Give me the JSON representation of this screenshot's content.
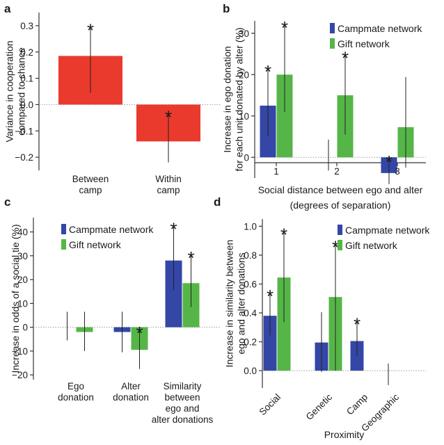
{
  "colors": {
    "red": "#ea3a2d",
    "blue": "#3446a6",
    "green": "#55b647",
    "axis": "#333333",
    "zero_line": "#9a9a9a"
  },
  "chart_data": [
    {
      "id": "a",
      "panel_letter": "a",
      "type": "bar",
      "ylabel_lines": [
        "Variance in cooperation",
        "compared to chance"
      ],
      "ylim": [
        -0.25,
        0.35
      ],
      "yticks": [
        -0.2,
        -0.1,
        0.0,
        0.1,
        0.2,
        0.3
      ],
      "ytick_labels": [
        "−0.2",
        "−0.1",
        "0.0",
        "0.1",
        "0.2",
        "0.3"
      ],
      "categories": [
        {
          "lines": [
            "Between",
            "camp"
          ]
        },
        {
          "lines": [
            "Within",
            "camp"
          ]
        }
      ],
      "series": [
        {
          "color": "#ea3a2d",
          "values": [
            0.185,
            -0.14
          ],
          "err_low": [
            0.045,
            -0.22
          ],
          "err_high": [
            0.29,
            -0.04
          ],
          "significant": [
            true,
            true
          ]
        }
      ],
      "zero_line": "dotted",
      "legend": null
    },
    {
      "id": "b",
      "panel_letter": "b",
      "type": "bar",
      "ylabel_lines": [
        "Increase in ego donation",
        "for each unit donated by alter (%)"
      ],
      "xlabel_lines": [
        "Social distance between ego and alter",
        "(degrees of separation)"
      ],
      "ylim": [
        -5,
        33
      ],
      "yticks": [
        0,
        10,
        20,
        30
      ],
      "ytick_labels": [
        "0",
        "10",
        "20",
        "30"
      ],
      "categories": [
        {
          "lines": [
            "1"
          ]
        },
        {
          "lines": [
            "2"
          ]
        },
        {
          "lines": [
            "3"
          ]
        }
      ],
      "series": [
        {
          "name": "Campmate network",
          "color": "#3446a6",
          "values": [
            12.5,
            null,
            -3.8
          ],
          "err_low": [
            5.2,
            -3.2,
            -6.5
          ],
          "err_high": [
            21.2,
            4.3,
            -0.6
          ],
          "significant": [
            true,
            false,
            true
          ]
        },
        {
          "name": "Gift network",
          "color": "#55b647",
          "values": [
            20.0,
            15.0,
            7.3
          ],
          "err_low": [
            11.0,
            5.5,
            -2.5
          ],
          "err_high": [
            31.8,
            24.5,
            19.4
          ],
          "significant": [
            true,
            true,
            false
          ]
        }
      ],
      "zero_line": "dotted",
      "legend": {
        "position": "top-right"
      }
    },
    {
      "id": "c",
      "panel_letter": "c",
      "type": "bar",
      "ylabel_lines": [
        "Increase in odds of a social tie (%)"
      ],
      "ylim": [
        -22,
        46
      ],
      "yticks": [
        -20,
        -10,
        0,
        10,
        20,
        30,
        40
      ],
      "ytick_labels": [
        "−20",
        "−10",
        "0",
        "10",
        "20",
        "30",
        "40"
      ],
      "categories": [
        {
          "lines": [
            "Ego",
            "donation"
          ]
        },
        {
          "lines": [
            "Alter",
            "donation"
          ]
        },
        {
          "lines": [
            "Similarity",
            "between",
            "ego and",
            "alter donations"
          ]
        }
      ],
      "series": [
        {
          "name": "Campmate network",
          "color": "#3446a6",
          "values": [
            null,
            -2.0,
            28.0
          ],
          "err_low": [
            -5.5,
            -10.5,
            15.5
          ],
          "err_high": [
            6.5,
            6.5,
            42.0
          ],
          "significant": [
            false,
            false,
            true
          ]
        },
        {
          "name": "Gift network",
          "color": "#55b647",
          "values": [
            -2.0,
            -9.5,
            18.5
          ],
          "err_low": [
            -10.0,
            -17.5,
            8.5
          ],
          "err_high": [
            6.5,
            -1.5,
            30.0
          ],
          "significant": [
            false,
            true,
            true
          ]
        }
      ],
      "zero_line": "dotted",
      "legend": {
        "position": "top-left"
      }
    },
    {
      "id": "d",
      "panel_letter": "d",
      "type": "bar",
      "ylabel_lines": [
        "Increase in similarity between",
        "ego and alter donations"
      ],
      "xlabel_lines": [
        "Proximity"
      ],
      "ylim": [
        -0.12,
        1.05
      ],
      "yticks": [
        0.0,
        0.2,
        0.4,
        0.6,
        0.8,
        1.0
      ],
      "ytick_labels": [
        "0.0",
        "0.2",
        "0.4",
        "0.6",
        "0.8",
        "1.0"
      ],
      "categories": [
        {
          "lines": [
            "Social"
          ]
        },
        {
          "lines": [
            "Genetic"
          ]
        },
        {
          "lines": [
            "Camp"
          ]
        },
        {
          "lines": [
            "Geographic"
          ]
        }
      ],
      "category_label_rotation": -45,
      "series": [
        {
          "name": "Campmate network",
          "color": "#3446a6",
          "values": [
            0.38,
            0.195,
            0.205,
            null
          ],
          "err_low": [
            0.245,
            -0.01,
            0.105,
            -0.1
          ],
          "err_high": [
            0.53,
            0.405,
            0.335,
            0.05
          ],
          "significant": [
            true,
            false,
            true,
            false
          ]
        },
        {
          "name": "Gift network",
          "color": "#55b647",
          "values": [
            0.645,
            0.51,
            null,
            null
          ],
          "err_low": [
            0.335,
            0.0,
            null,
            null
          ],
          "err_high": [
            0.955,
            0.87,
            null,
            null
          ],
          "significant": [
            true,
            true,
            false,
            false
          ]
        }
      ],
      "zero_line": "dotted",
      "legend": {
        "position": "top-right"
      }
    }
  ]
}
